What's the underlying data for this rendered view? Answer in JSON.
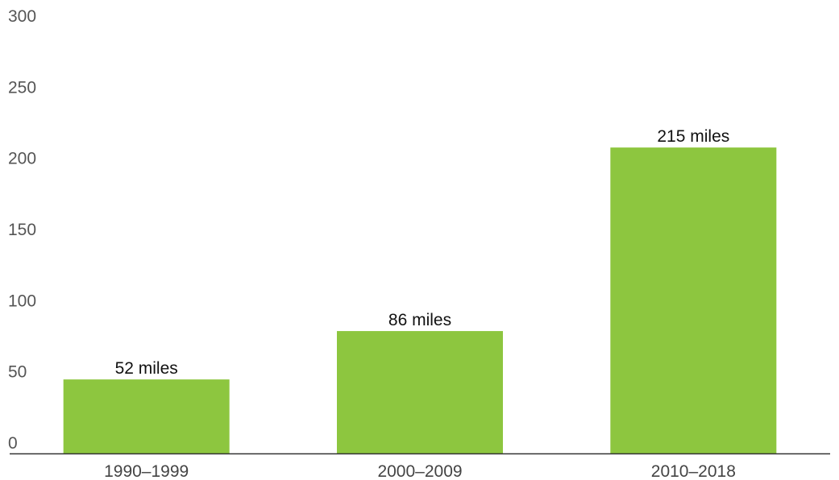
{
  "chart_data": {
    "type": "bar",
    "categories": [
      "1990–1999",
      "2000–2009",
      "2010–2018"
    ],
    "values": [
      52,
      86,
      215
    ],
    "value_labels": [
      "52 miles",
      "86 miles",
      "215 miles"
    ],
    "title": "",
    "xlabel": "",
    "ylabel": "",
    "ylim": [
      0,
      300
    ],
    "yticks": [
      0,
      50,
      100,
      150,
      200,
      250,
      300
    ],
    "grid": false,
    "legend": "none",
    "bar_color": "#8DC63F"
  }
}
